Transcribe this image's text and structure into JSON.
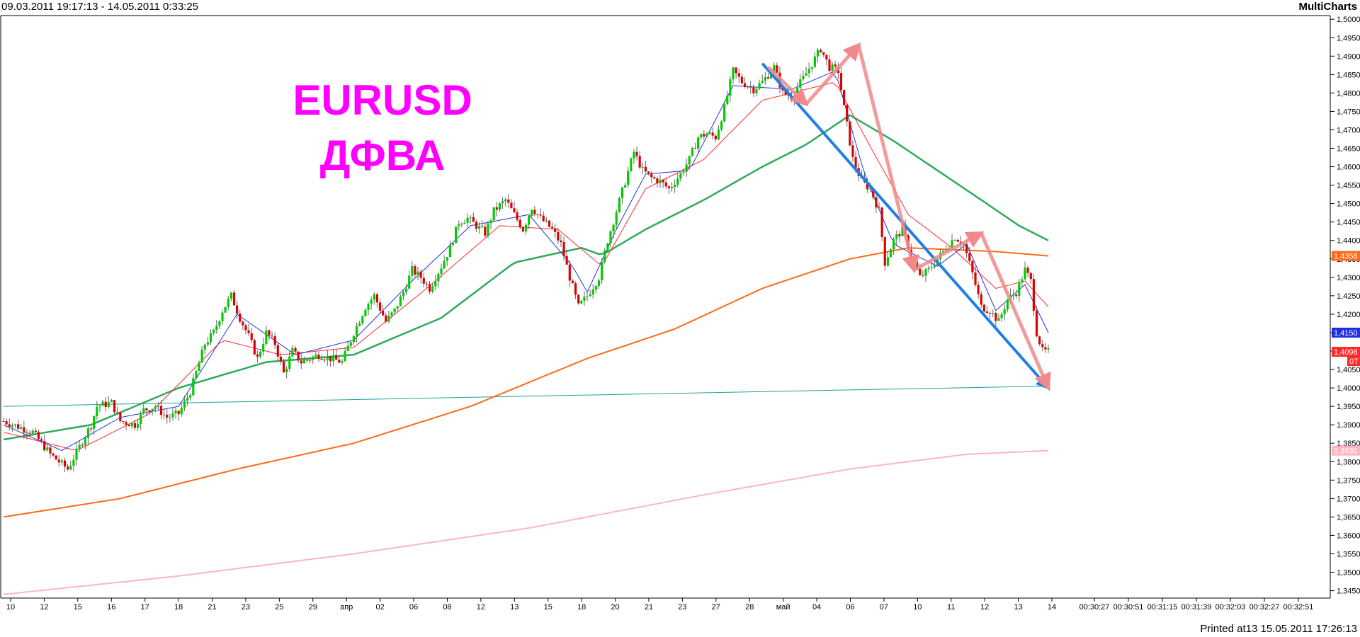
{
  "header": {
    "range": "09.03.2011 19:17:13 - 14.05.2011 0:33:25",
    "brand": "MultiCharts"
  },
  "footer": {
    "printed": "Printed at13 15.05.2011 17:26:13"
  },
  "chart_data": {
    "type": "candlestick",
    "title": "EURUSD",
    "subtitle": "ДФВА",
    "ylim": [
      1.343,
      1.501
    ],
    "y_ticks": [
      "1,3450",
      "1,3500",
      "1,3550",
      "1,3600",
      "1,3650",
      "1,3700",
      "1,3750",
      "1,3800",
      "1,3850",
      "1,3900",
      "1,3950",
      "1,4000",
      "1,4050",
      "1,4100",
      "1,4150",
      "1,4200",
      "1,4250",
      "1,4300",
      "1,4350",
      "1,4400",
      "1,4450",
      "1,4500",
      "1,4550",
      "1,4600",
      "1,4650",
      "1,4700",
      "1,4750",
      "1,4800",
      "1,4850",
      "1,4900",
      "1,4950",
      "1,5000"
    ],
    "x_ticks": [
      "10",
      "12",
      "15",
      "16",
      "17",
      "18",
      "21",
      "23",
      "25",
      "29",
      "апр",
      "02",
      "06",
      "08",
      "12",
      "13",
      "15",
      "18",
      "20",
      "21",
      "23",
      "27",
      "28",
      "май",
      "04",
      "06",
      "07",
      "10",
      "11",
      "12",
      "13",
      "14",
      "00:30:27",
      "00:30:51",
      "00:31:15",
      "00:31:39",
      "00:32:03",
      "00:32:27",
      "00:32:51"
    ],
    "price_markers": [
      {
        "label": "1,4358",
        "color": "#ff6a1a"
      },
      {
        "label": "1,4150",
        "color": "#1f2ee0"
      },
      {
        "label": "1,4098",
        "color": "#ff2a2a"
      },
      {
        "label": "0T",
        "color": "#ff2a2a"
      },
      {
        "label": "1,3830",
        "color": "#ffb6c1"
      }
    ],
    "colors": {
      "bull": "#00cc00",
      "bear": "#e00000",
      "ma_fast": "#2233dd",
      "ma_mid": "#ff2a2a",
      "ma_green": "#2eaa5c",
      "ma_orange": "#ff6a1a",
      "ma_pink": "#ffb6c1",
      "trend_blue": "#1e7fe8",
      "arrows": "#f08a8a",
      "support": "#1aa0a0"
    },
    "close_path": [
      [
        0,
        1.391
      ],
      [
        10,
        1.388
      ],
      [
        16,
        1.382
      ],
      [
        22,
        1.378
      ],
      [
        30,
        1.39
      ],
      [
        32,
        1.395
      ],
      [
        37,
        1.396
      ],
      [
        40,
        1.391
      ],
      [
        45,
        1.39
      ],
      [
        48,
        1.394
      ],
      [
        52,
        1.395
      ],
      [
        56,
        1.392
      ],
      [
        60,
        1.393
      ],
      [
        64,
        1.399
      ],
      [
        69,
        1.412
      ],
      [
        72,
        1.415
      ],
      [
        75,
        1.421
      ],
      [
        78,
        1.425
      ],
      [
        81,
        1.419
      ],
      [
        84,
        1.414
      ],
      [
        87,
        1.408
      ],
      [
        90,
        1.415
      ],
      [
        93,
        1.412
      ],
      [
        96,
        1.404
      ],
      [
        99,
        1.41
      ],
      [
        102,
        1.407
      ],
      [
        105,
        1.408
      ],
      [
        108,
        1.409
      ],
      [
        112,
        1.408
      ],
      [
        116,
        1.407
      ],
      [
        120,
        1.415
      ],
      [
        124,
        1.422
      ],
      [
        127,
        1.425
      ],
      [
        131,
        1.418
      ],
      [
        134,
        1.421
      ],
      [
        137,
        1.426
      ],
      [
        140,
        1.432
      ],
      [
        143,
        1.43
      ],
      [
        146,
        1.427
      ],
      [
        150,
        1.433
      ],
      [
        153,
        1.438
      ],
      [
        156,
        1.445
      ],
      [
        159,
        1.446
      ],
      [
        162,
        1.444
      ],
      [
        165,
        1.442
      ],
      [
        168,
        1.448
      ],
      [
        172,
        1.451
      ],
      [
        175,
        1.447
      ],
      [
        178,
        1.443
      ],
      [
        181,
        1.449
      ],
      [
        184,
        1.446
      ],
      [
        188,
        1.443
      ],
      [
        191,
        1.439
      ],
      [
        194,
        1.43
      ],
      [
        197,
        1.422
      ],
      [
        200,
        1.425
      ],
      [
        204,
        1.43
      ],
      [
        207,
        1.44
      ],
      [
        210,
        1.448
      ],
      [
        213,
        1.456
      ],
      [
        216,
        1.464
      ],
      [
        219,
        1.459
      ],
      [
        222,
        1.457
      ],
      [
        225,
        1.456
      ],
      [
        228,
        1.454
      ],
      [
        232,
        1.458
      ],
      [
        235,
        1.462
      ],
      [
        238,
        1.468
      ],
      [
        241,
        1.469
      ],
      [
        244,
        1.468
      ],
      [
        247,
        1.476
      ],
      [
        250,
        1.486
      ],
      [
        253,
        1.483
      ],
      [
        257,
        1.481
      ],
      [
        260,
        1.483
      ],
      [
        264,
        1.487
      ],
      [
        267,
        1.48
      ],
      [
        270,
        1.479
      ],
      [
        274,
        1.484
      ],
      [
        277,
        1.488
      ],
      [
        280,
        1.492
      ],
      [
        283,
        1.487
      ],
      [
        286,
        1.486
      ],
      [
        288,
        1.476
      ],
      [
        291,
        1.462
      ],
      [
        294,
        1.456
      ],
      [
        297,
        1.454
      ],
      [
        300,
        1.448
      ],
      [
        302,
        1.434
      ],
      [
        305,
        1.44
      ],
      [
        308,
        1.443
      ],
      [
        311,
        1.436
      ],
      [
        314,
        1.43
      ],
      [
        317,
        1.432
      ],
      [
        320,
        1.435
      ],
      [
        323,
        1.438
      ],
      [
        326,
        1.441
      ],
      [
        329,
        1.439
      ],
      [
        332,
        1.431
      ],
      [
        335,
        1.422
      ],
      [
        338,
        1.421
      ],
      [
        341,
        1.418
      ],
      [
        344,
        1.424
      ],
      [
        347,
        1.426
      ],
      [
        350,
        1.432
      ],
      [
        352,
        1.429
      ],
      [
        354,
        1.415
      ],
      [
        356,
        1.41
      ],
      [
        358,
        1.4098
      ]
    ],
    "ma_fast": [
      [
        0,
        1.39
      ],
      [
        20,
        1.383
      ],
      [
        40,
        1.392
      ],
      [
        60,
        1.395
      ],
      [
        80,
        1.42
      ],
      [
        100,
        1.409
      ],
      [
        120,
        1.413
      ],
      [
        140,
        1.429
      ],
      [
        160,
        1.444
      ],
      [
        180,
        1.447
      ],
      [
        195,
        1.433
      ],
      [
        200,
        1.426
      ],
      [
        210,
        1.443
      ],
      [
        220,
        1.458
      ],
      [
        235,
        1.459
      ],
      [
        250,
        1.482
      ],
      [
        270,
        1.481
      ],
      [
        285,
        1.486
      ],
      [
        295,
        1.458
      ],
      [
        305,
        1.439
      ],
      [
        320,
        1.433
      ],
      [
        330,
        1.439
      ],
      [
        340,
        1.421
      ],
      [
        350,
        1.428
      ],
      [
        358,
        1.415
      ]
    ],
    "ma_mid": [
      [
        0,
        1.388
      ],
      [
        25,
        1.383
      ],
      [
        50,
        1.393
      ],
      [
        75,
        1.413
      ],
      [
        95,
        1.409
      ],
      [
        120,
        1.411
      ],
      [
        145,
        1.427
      ],
      [
        170,
        1.444
      ],
      [
        190,
        1.443
      ],
      [
        205,
        1.433
      ],
      [
        220,
        1.454
      ],
      [
        240,
        1.462
      ],
      [
        260,
        1.478
      ],
      [
        285,
        1.483
      ],
      [
        298,
        1.464
      ],
      [
        310,
        1.447
      ],
      [
        325,
        1.438
      ],
      [
        340,
        1.427
      ],
      [
        350,
        1.429
      ],
      [
        358,
        1.422
      ]
    ],
    "ma_green": [
      [
        0,
        1.386
      ],
      [
        30,
        1.39
      ],
      [
        60,
        1.4
      ],
      [
        90,
        1.407
      ],
      [
        120,
        1.409
      ],
      [
        150,
        1.419
      ],
      [
        175,
        1.434
      ],
      [
        198,
        1.438
      ],
      [
        205,
        1.436
      ],
      [
        220,
        1.443
      ],
      [
        240,
        1.451
      ],
      [
        260,
        1.46
      ],
      [
        275,
        1.466
      ],
      [
        290,
        1.474
      ],
      [
        305,
        1.467
      ],
      [
        320,
        1.459
      ],
      [
        335,
        1.451
      ],
      [
        348,
        1.444
      ],
      [
        358,
        1.44
      ]
    ],
    "ma_orange": [
      [
        0,
        1.365
      ],
      [
        40,
        1.37
      ],
      [
        80,
        1.378
      ],
      [
        120,
        1.385
      ],
      [
        160,
        1.395
      ],
      [
        200,
        1.408
      ],
      [
        230,
        1.416
      ],
      [
        260,
        1.427
      ],
      [
        290,
        1.435
      ],
      [
        310,
        1.438
      ],
      [
        340,
        1.437
      ],
      [
        358,
        1.4358
      ]
    ],
    "ma_pink": [
      [
        0,
        1.344
      ],
      [
        60,
        1.349
      ],
      [
        120,
        1.355
      ],
      [
        180,
        1.362
      ],
      [
        240,
        1.371
      ],
      [
        290,
        1.378
      ],
      [
        330,
        1.382
      ],
      [
        358,
        1.383
      ]
    ],
    "support_line": [
      [
        0,
        1.395
      ],
      [
        358,
        1.4005
      ]
    ],
    "trend_line": [
      [
        260,
        1.488
      ],
      [
        358,
        1.4
      ]
    ],
    "wave_arrows": [
      [
        [
          262,
          1.487
        ],
        [
          275,
          1.477
        ]
      ],
      [
        [
          275,
          1.477
        ],
        [
          293,
          1.493
        ]
      ],
      [
        [
          293,
          1.493
        ],
        [
          312,
          1.432
        ]
      ],
      [
        [
          312,
          1.432
        ],
        [
          335,
          1.442
        ]
      ],
      [
        [
          335,
          1.442
        ],
        [
          358,
          1.4
        ]
      ]
    ]
  }
}
